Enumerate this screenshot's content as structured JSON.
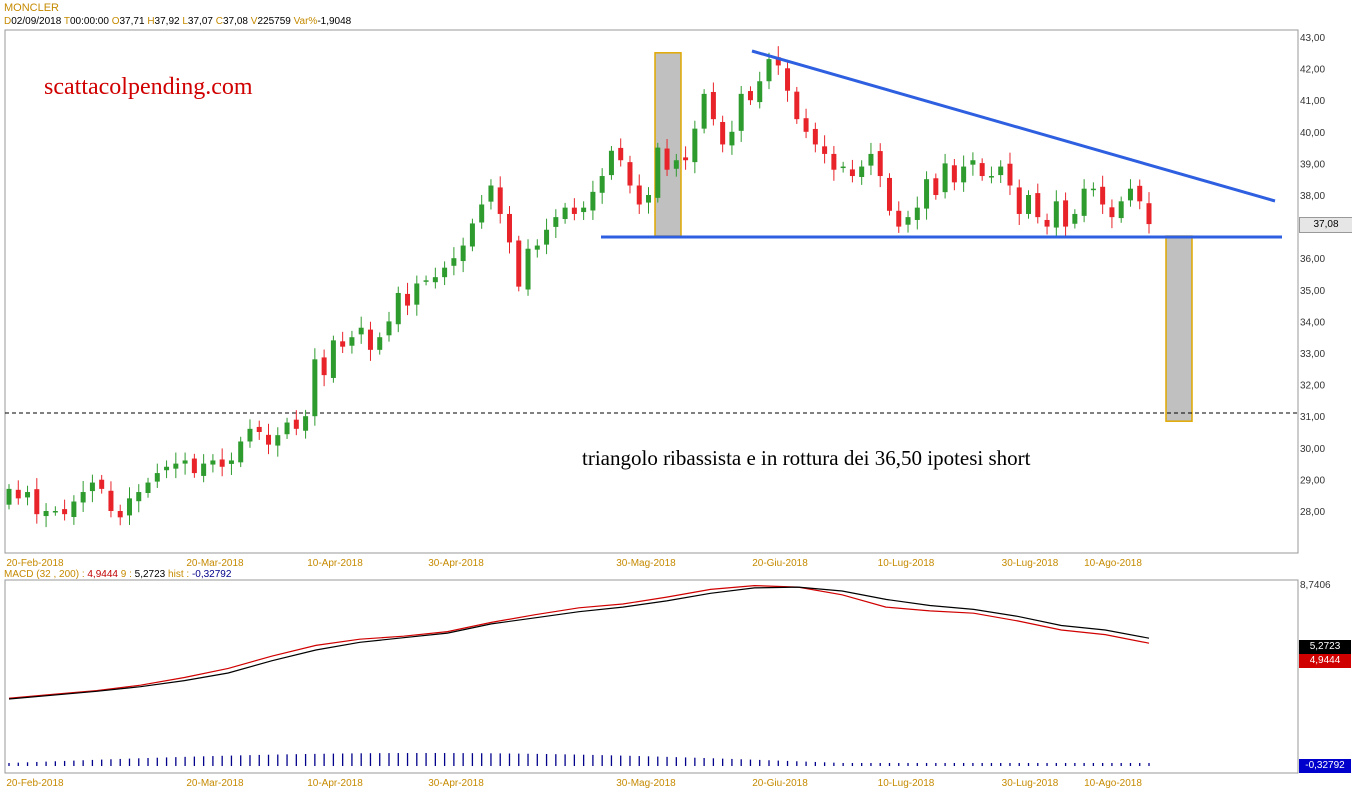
{
  "header": {
    "symbol": "MONCLER",
    "quote": [
      {
        "k": "D",
        "v": "02/09/2018"
      },
      {
        "k": "T",
        "v": "00:00:00"
      },
      {
        "k": "O",
        "v": "37,71"
      },
      {
        "k": "H",
        "v": "37,92"
      },
      {
        "k": "L",
        "v": "37,07"
      },
      {
        "k": "C",
        "v": "37,08"
      },
      {
        "k": "V",
        "v": "225759"
      },
      {
        "k": "Var%",
        "v": "-1,9048"
      }
    ]
  },
  "brand": "scattacolpending.com",
  "annotation": "triangolo ribassista e in rottura dei 36,50 ipotesi short",
  "colors": {
    "up": "#2e9b2e",
    "down": "#e8232a",
    "trend": "#2d5fe0",
    "fill": "#c0c0c0",
    "fill_border": "#e0a800",
    "macd": "#000000",
    "signal": "#d00000",
    "hist": "#00008b"
  },
  "chart_data": [
    {
      "type": "candlestick",
      "title": "MONCLER",
      "ylim": [
        27,
        43
      ],
      "y_ticks": [
        "28,00",
        "29,00",
        "30,00",
        "31,00",
        "32,00",
        "33,00",
        "34,00",
        "35,00",
        "36,00",
        "37,00",
        "38,00",
        "39,00",
        "40,00",
        "41,00",
        "42,00",
        "43,00"
      ],
      "x_ticks": [
        "20-Feb-2018",
        "20-Mar-2018",
        "10-Apr-2018",
        "30-Apr-2018",
        "30-Mag-2018",
        "20-Giu-2018",
        "10-Lug-2018",
        "30-Lug-2018",
        "10-Ago-2018"
      ],
      "last_price": "37,08",
      "support_level": 36.7,
      "target_level": 31.0,
      "closes": [
        28.7,
        28.4,
        28.6,
        27.9,
        28.0,
        28.0,
        27.9,
        28.3,
        28.6,
        28.9,
        28.7,
        28.0,
        27.8,
        28.4,
        28.6,
        28.9,
        29.2,
        29.4,
        29.5,
        29.6,
        29.2,
        29.5,
        29.6,
        29.4,
        29.6,
        30.2,
        30.6,
        30.5,
        30.1,
        30.4,
        30.8,
        30.6,
        31.0,
        32.8,
        32.3,
        33.4,
        33.2,
        33.5,
        33.8,
        33.1,
        33.5,
        34.0,
        34.9,
        34.5,
        35.2,
        35.3,
        35.4,
        35.7,
        36.0,
        36.4,
        37.1,
        37.7,
        38.3,
        37.4,
        36.5,
        35.1,
        36.3,
        36.4,
        36.9,
        37.3,
        37.6,
        37.4,
        37.6,
        38.1,
        38.6,
        39.4,
        39.1,
        38.3,
        37.7,
        38.0,
        39.5,
        38.8,
        39.1,
        39.1,
        40.1,
        41.2,
        40.4,
        39.6,
        40.0,
        41.2,
        41.0,
        41.6,
        42.3,
        42.1,
        41.3,
        40.4,
        40.0,
        39.6,
        39.3,
        38.8,
        38.9,
        38.6,
        38.9,
        39.3,
        38.6,
        37.5,
        37.0,
        37.3,
        37.6,
        38.5,
        38.0,
        39.0,
        38.4,
        38.9,
        39.1,
        38.6,
        38.6,
        38.9,
        38.3,
        37.4,
        38.0,
        37.3,
        37.0,
        37.8,
        37.0,
        37.4,
        38.2,
        38.2,
        37.7,
        37.3,
        37.8,
        38.2,
        37.8,
        37.08
      ]
    },
    {
      "type": "line",
      "title": "MACD",
      "legend": [
        {
          "label": "MACD",
          "v": ""
        },
        {
          "label": "(32 , 200) :",
          "v": "4,9444"
        },
        {
          "label": "9 :",
          "v": "5,2723"
        },
        {
          "label": "hist :",
          "v": "-0,32792"
        }
      ],
      "y_ticks": [
        "8,7406"
      ],
      "ylim": [
        0.9,
        8.74
      ],
      "x_ticks": [
        "20-Feb-2018",
        "20-Mar-2018",
        "10-Apr-2018",
        "30-Apr-2018",
        "30-Mag-2018",
        "20-Giu-2018",
        "10-Lug-2018",
        "30-Lug-2018",
        "10-Ago-2018"
      ],
      "series": [
        {
          "name": "(32 , 200)",
          "values": [
            1.35,
            1.6,
            1.85,
            2.2,
            2.7,
            3.3,
            4.1,
            4.8,
            5.2,
            5.4,
            5.7,
            6.3,
            6.8,
            7.25,
            7.5,
            7.95,
            8.45,
            8.7,
            8.6,
            8.1,
            7.3,
            7.05,
            6.9,
            6.4,
            5.8,
            5.5,
            4.94
          ]
        },
        {
          "name": "9",
          "values": [
            1.3,
            1.55,
            1.8,
            2.1,
            2.5,
            3.0,
            3.8,
            4.5,
            5.0,
            5.3,
            5.6,
            6.2,
            6.6,
            7.0,
            7.3,
            7.7,
            8.2,
            8.55,
            8.6,
            8.35,
            7.8,
            7.4,
            7.15,
            6.7,
            6.1,
            5.8,
            5.27
          ]
        }
      ],
      "last_values": {
        "signal": "5,2723",
        "macd": "4,9444",
        "hist": "-0,32792"
      }
    }
  ]
}
